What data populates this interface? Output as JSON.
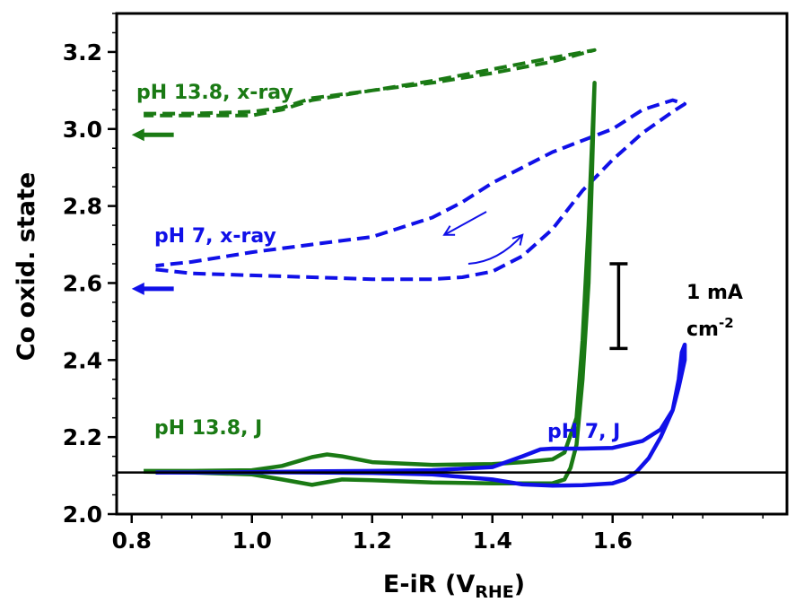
{
  "chart_data": {
    "type": "line",
    "title": "",
    "xlabel": "E-iR (V",
    "xlabel_sub": "RHE",
    "xlabel_close": ")",
    "ylabel": "Co oxid. state",
    "xlim": [
      0.775,
      1.89
    ],
    "ylim": [
      2.0,
      3.3
    ],
    "xticks": [
      "0.8",
      "1.0",
      "1.2",
      "1.4",
      "1.6"
    ],
    "xtick_values": [
      0.8,
      1.0,
      1.2,
      1.4,
      1.6
    ],
    "yticks": [
      "2.0",
      "2.2",
      "2.4",
      "2.6",
      "2.8",
      "3.0",
      "3.2"
    ],
    "ytick_values": [
      2.0,
      2.2,
      2.4,
      2.6,
      2.8,
      3.0,
      3.2
    ],
    "grid": false,
    "colors": {
      "green": "#1a7a14",
      "blue": "#1010e8",
      "black": "#000000"
    },
    "annotations": {
      "ph138_xray": "pH 13.8, x-ray",
      "ph7_xray": "pH 7, x-ray",
      "ph138_j": "pH 13.8, J",
      "ph7_j": "pH 7, J",
      "scale_line1": "1 mA",
      "scale_line2": "cm",
      "scale_sup": "-2"
    },
    "scale_bar": {
      "x": 1.61,
      "y_bottom": 2.43,
      "y_top": 2.65
    },
    "baseline_y": 2.108,
    "axis_arrows": [
      {
        "color": "green",
        "y": 2.985,
        "x_from": 0.87,
        "x_to": 0.8
      },
      {
        "color": "blue",
        "y": 2.585,
        "x_from": 0.87,
        "x_to": 0.8
      }
    ],
    "direction_arrows": [
      {
        "color": "blue",
        "points": [
          [
            1.39,
            2.785
          ],
          [
            1.32,
            2.725
          ]
        ]
      },
      {
        "color": "blue",
        "points": [
          [
            1.36,
            2.65
          ],
          [
            1.41,
            2.655
          ],
          [
            1.45,
            2.725
          ]
        ]
      }
    ],
    "series": [
      {
        "name": "pH 13.8, x-ray",
        "style": "dashed",
        "color": "green",
        "x": [
          0.82,
          0.9,
          1.0,
          1.05,
          1.1,
          1.2,
          1.3,
          1.4,
          1.5,
          1.57,
          1.5,
          1.4,
          1.3,
          1.2,
          1.1,
          1.05,
          1.0,
          0.9,
          0.82
        ],
        "y": [
          3.04,
          3.04,
          3.045,
          3.055,
          3.08,
          3.1,
          3.12,
          3.145,
          3.175,
          3.205,
          3.185,
          3.155,
          3.125,
          3.1,
          3.075,
          3.05,
          3.035,
          3.035,
          3.035
        ]
      },
      {
        "name": "pH 7, x-ray",
        "style": "dashed",
        "color": "blue",
        "x": [
          0.84,
          0.9,
          1.0,
          1.1,
          1.2,
          1.3,
          1.35,
          1.4,
          1.45,
          1.5,
          1.55,
          1.6,
          1.65,
          1.7,
          1.72,
          1.7,
          1.65,
          1.6,
          1.55,
          1.5,
          1.45,
          1.4,
          1.35,
          1.3,
          1.2,
          1.1,
          1.0,
          0.9,
          0.84
        ],
        "y": [
          2.635,
          2.625,
          2.62,
          2.615,
          2.61,
          2.61,
          2.615,
          2.63,
          2.67,
          2.74,
          2.84,
          2.92,
          2.99,
          3.045,
          3.065,
          3.075,
          3.05,
          3.0,
          2.97,
          2.94,
          2.9,
          2.86,
          2.81,
          2.77,
          2.72,
          2.7,
          2.68,
          2.655,
          2.645
        ]
      },
      {
        "name": "pH 13.8, J",
        "style": "solid",
        "color": "green",
        "x": [
          0.82,
          0.9,
          1.0,
          1.05,
          1.1,
          1.125,
          1.15,
          1.2,
          1.3,
          1.4,
          1.45,
          1.5,
          1.52,
          1.54,
          1.55,
          1.56,
          1.57,
          1.565,
          1.56,
          1.55,
          1.54,
          1.53,
          1.52,
          1.5,
          1.4,
          1.3,
          1.2,
          1.15,
          1.125,
          1.1,
          1.05,
          1.0,
          0.9,
          0.82
        ],
        "y": [
          2.112,
          2.112,
          2.114,
          2.125,
          2.148,
          2.155,
          2.15,
          2.135,
          2.128,
          2.13,
          2.135,
          2.142,
          2.16,
          2.25,
          2.45,
          2.75,
          3.12,
          2.85,
          2.6,
          2.35,
          2.18,
          2.12,
          2.09,
          2.08,
          2.08,
          2.082,
          2.088,
          2.09,
          2.083,
          2.076,
          2.09,
          2.103,
          2.108,
          2.11
        ]
      },
      {
        "name": "pH 7, J",
        "style": "solid",
        "color": "blue",
        "x": [
          0.84,
          0.9,
          1.0,
          1.1,
          1.2,
          1.3,
          1.4,
          1.45,
          1.48,
          1.5,
          1.55,
          1.6,
          1.65,
          1.68,
          1.7,
          1.71,
          1.72,
          1.72,
          1.715,
          1.71,
          1.7,
          1.68,
          1.66,
          1.64,
          1.62,
          1.6,
          1.55,
          1.5,
          1.45,
          1.4,
          1.3,
          1.2,
          1.1,
          1.0,
          0.9,
          0.84
        ],
        "y": [
          2.108,
          2.108,
          2.109,
          2.111,
          2.112,
          2.114,
          2.122,
          2.15,
          2.168,
          2.17,
          2.17,
          2.172,
          2.19,
          2.22,
          2.27,
          2.33,
          2.4,
          2.44,
          2.42,
          2.35,
          2.27,
          2.2,
          2.145,
          2.11,
          2.09,
          2.08,
          2.075,
          2.074,
          2.077,
          2.09,
          2.103,
          2.107,
          2.108,
          2.109,
          2.108,
          2.108
        ]
      }
    ]
  }
}
